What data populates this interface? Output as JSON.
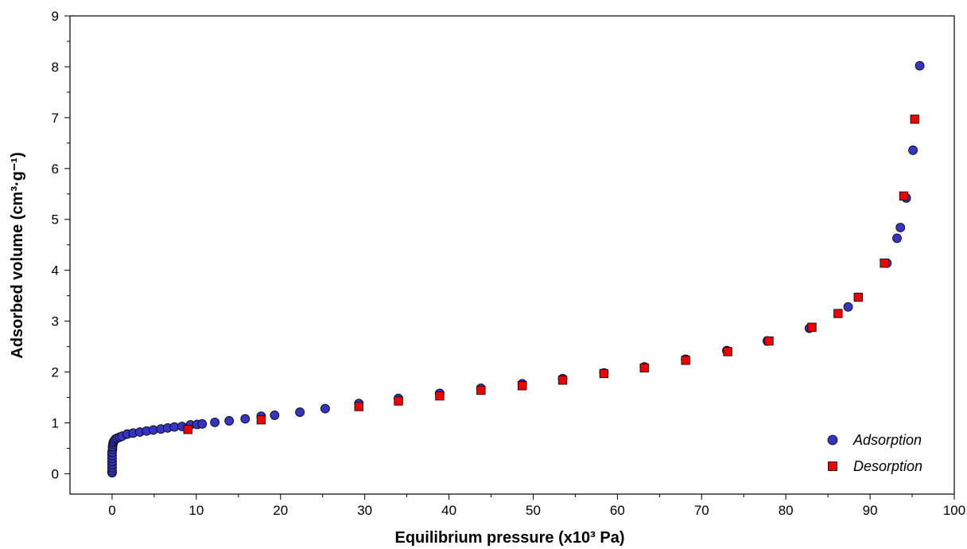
{
  "chart_data": {
    "type": "scatter",
    "title": "",
    "xlabel": "Equilibrium pressure (x10³ Pa)",
    "ylabel": "Adsorbed volume (cm³·g⁻¹)",
    "xlim": [
      -5,
      100
    ],
    "ylim": [
      -0.4,
      9
    ],
    "xticks": [
      "0",
      "10",
      "20",
      "30",
      "40",
      "50",
      "60",
      "70",
      "80",
      "90",
      "100"
    ],
    "yticks": [
      "0",
      "1",
      "2",
      "3",
      "4",
      "5",
      "6",
      "7",
      "8",
      "9"
    ],
    "grid": false,
    "legend_position": "bottom-right",
    "series": [
      {
        "name": "Adsorption",
        "marker": "circle",
        "color": "#3535c0",
        "points": [
          [
            0.0,
            0.02
          ],
          [
            0.0,
            0.06
          ],
          [
            0.0,
            0.12
          ],
          [
            0.0,
            0.18
          ],
          [
            0.0,
            0.24
          ],
          [
            0.0,
            0.3
          ],
          [
            0.0,
            0.36
          ],
          [
            0.0,
            0.42
          ],
          [
            0.05,
            0.48
          ],
          [
            0.05,
            0.53
          ],
          [
            0.1,
            0.58
          ],
          [
            0.15,
            0.62
          ],
          [
            0.25,
            0.65
          ],
          [
            0.4,
            0.68
          ],
          [
            0.6,
            0.7
          ],
          [
            0.9,
            0.72
          ],
          [
            1.2,
            0.74
          ],
          [
            1.8,
            0.78
          ],
          [
            2.5,
            0.8
          ],
          [
            3.3,
            0.82
          ],
          [
            4.1,
            0.84
          ],
          [
            4.9,
            0.86
          ],
          [
            5.8,
            0.88
          ],
          [
            6.6,
            0.9
          ],
          [
            7.4,
            0.92
          ],
          [
            8.3,
            0.93
          ],
          [
            9.3,
            0.96
          ],
          [
            10.1,
            0.97
          ],
          [
            10.7,
            0.98
          ],
          [
            12.2,
            1.01
          ],
          [
            13.9,
            1.04
          ],
          [
            15.8,
            1.08
          ],
          [
            17.7,
            1.13
          ],
          [
            19.3,
            1.15
          ],
          [
            22.3,
            1.21
          ],
          [
            25.3,
            1.28
          ],
          [
            29.3,
            1.38
          ],
          [
            34.0,
            1.48
          ],
          [
            38.9,
            1.58
          ],
          [
            43.8,
            1.68
          ],
          [
            48.7,
            1.77
          ],
          [
            53.5,
            1.87
          ],
          [
            58.4,
            1.98
          ],
          [
            63.2,
            2.1
          ],
          [
            68.1,
            2.25
          ],
          [
            73.0,
            2.42
          ],
          [
            77.8,
            2.61
          ],
          [
            82.8,
            2.86
          ],
          [
            87.4,
            3.28
          ],
          [
            92.0,
            4.14
          ],
          [
            93.2,
            4.63
          ],
          [
            93.6,
            4.84
          ],
          [
            94.3,
            5.42
          ],
          [
            95.1,
            6.36
          ],
          [
            95.9,
            8.02
          ]
        ]
      },
      {
        "name": "Desorption",
        "marker": "square",
        "color": "#ee0000",
        "points": [
          [
            95.3,
            6.97
          ],
          [
            94.0,
            5.46
          ],
          [
            91.7,
            4.14
          ],
          [
            88.6,
            3.47
          ],
          [
            86.2,
            3.15
          ],
          [
            83.1,
            2.88
          ],
          [
            78.0,
            2.61
          ],
          [
            73.1,
            2.4
          ],
          [
            68.1,
            2.23
          ],
          [
            63.2,
            2.08
          ],
          [
            58.4,
            1.97
          ],
          [
            53.5,
            1.84
          ],
          [
            48.7,
            1.73
          ],
          [
            43.8,
            1.64
          ],
          [
            38.9,
            1.53
          ],
          [
            34.0,
            1.43
          ],
          [
            29.3,
            1.32
          ],
          [
            17.7,
            1.06
          ],
          [
            9.0,
            0.87
          ]
        ]
      }
    ]
  }
}
